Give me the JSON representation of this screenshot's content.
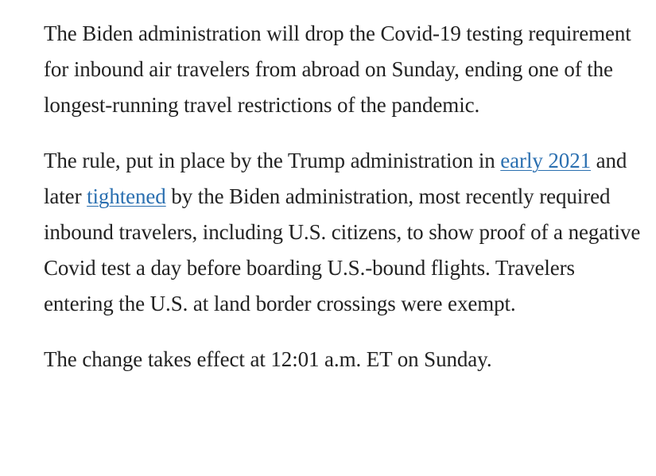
{
  "article": {
    "paragraph1": "The Biden administration will drop the Covid-19 testing requirement for inbound air travelers from abroad on Sunday, ending one of the longest-running travel restrictions of the pandemic.",
    "paragraph2": {
      "text_before_link1": "The rule, put in place by the Trump administration in ",
      "link1": "early 2021",
      "text_between_links": " and later ",
      "link2": "tightened",
      "text_after_link2": " by the Biden administration, most recently required inbound travelers, including U.S. citizens, to show proof of a negative Covid test a day before boarding U.S.-bound flights. Travelers entering the U.S. at land border crossings were exempt."
    },
    "paragraph3": "The change takes effect at 12:01 a.m. ET on Sunday."
  },
  "colors": {
    "text": "#222222",
    "link": "#2a6fb0",
    "background": "#ffffff"
  }
}
